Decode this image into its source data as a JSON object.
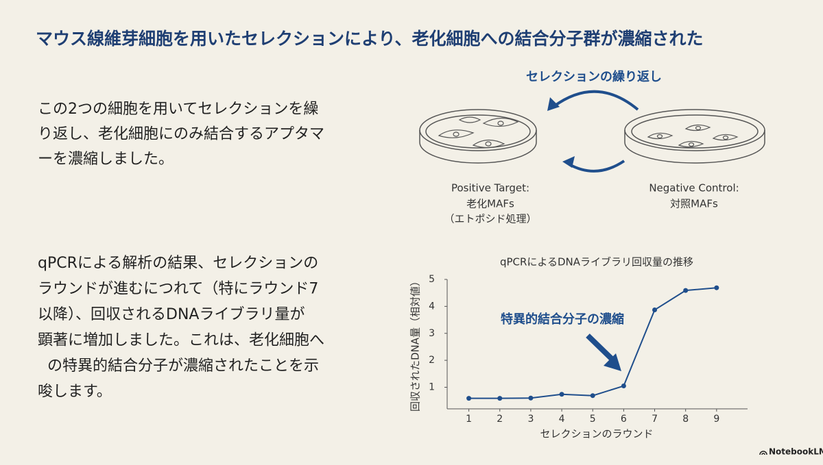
{
  "header": {
    "title": "マウス線維芽細胞を用いたセレクションにより、老化細胞への結合分子群が濃縮された"
  },
  "paragraphs": [
    [
      "この2つの細胞を用いてセレクションを繰",
      "り返し、老化細胞にのみ結合するアプタマ",
      "ーを濃縮しました。"
    ],
    [
      "qPCRによる解析の結果、セレクションの",
      "ラウンドが進むにつれて（特にラウンド7",
      "以降）、回収されるDNAライブラリ量が",
      "顕著に増加しました。これは、老化細胞へ",
      "の特異的結合分子が濃縮されたことを示",
      "唆します。"
    ]
  ],
  "diagram": {
    "cycle_label": "セレクションの繰り返し",
    "positive": [
      "Positive Target:",
      "老化MAFs",
      "（エトポシド処理）"
    ],
    "negative": [
      "Negative Control:",
      "対照MAFs"
    ]
  },
  "chart_data": {
    "type": "line",
    "title": "qPCRによるDNAライブラリ回収量の推移",
    "x_label": "セレクションのラウンド",
    "y_label": "回収されたDNA量（相対値）",
    "annotation": "特異的結合分子の濃縮",
    "x": [
      1,
      2,
      3,
      4,
      5,
      6,
      7,
      8,
      9
    ],
    "values": [
      0.59,
      0.59,
      0.6,
      0.74,
      0.69,
      1.05,
      3.87,
      4.59,
      4.69
    ],
    "color": "#1f4e8c",
    "xlim": [
      0.3,
      10
    ],
    "xticks": [
      1,
      2,
      3,
      4,
      5,
      6,
      7,
      8,
      9
    ],
    "ylim": [
      0.2,
      5
    ],
    "yticks": [
      1,
      2,
      3,
      4,
      5
    ]
  },
  "footer": {
    "brand": "NotebookLM"
  }
}
